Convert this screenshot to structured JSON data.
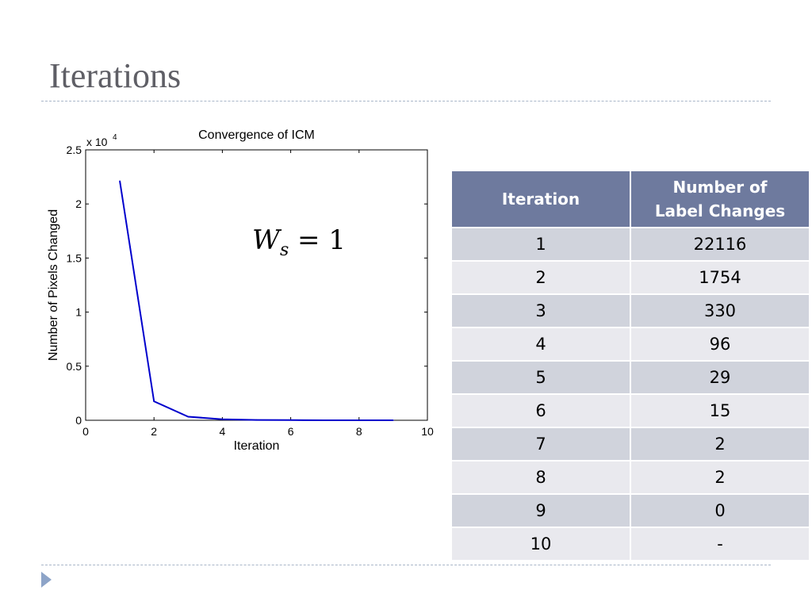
{
  "slide": {
    "title": "Iterations"
  },
  "equation": {
    "lhs": "W",
    "subscript": "s",
    "rhs": " = 1"
  },
  "table": {
    "headers": [
      "Iteration",
      "Number of Label Changes"
    ],
    "rows": [
      [
        "1",
        "22116"
      ],
      [
        "2",
        "1754"
      ],
      [
        "3",
        "330"
      ],
      [
        "4",
        "96"
      ],
      [
        "5",
        "29"
      ],
      [
        "6",
        "15"
      ],
      [
        "7",
        "2"
      ],
      [
        "8",
        "2"
      ],
      [
        "9",
        "0"
      ],
      [
        "10",
        "-"
      ]
    ]
  },
  "colors": {
    "title": "#5f5f66",
    "table_header": "#6e7a9e",
    "row_odd": "#d0d3dc",
    "row_even": "#e9e9ee",
    "series_line": "#0000cc",
    "bullet": "#8da4c8"
  },
  "chart_data": {
    "type": "line",
    "title": "Convergence of ICM",
    "xlabel": "Iteration",
    "ylabel": "Number of Pixels Changed",
    "y_multiplier_label": "x 10",
    "y_multiplier_exponent": "4",
    "xlim": [
      0,
      10
    ],
    "ylim": [
      0,
      2.5
    ],
    "xticks": [
      "0",
      "2",
      "4",
      "6",
      "8",
      "10"
    ],
    "yticks": [
      "0",
      "0.5",
      "1",
      "1.5",
      "2",
      "2.5"
    ],
    "grid": false,
    "series": [
      {
        "x": [
          1,
          2,
          3,
          4,
          5,
          6,
          7,
          8,
          9
        ],
        "y": [
          2.2116,
          0.1754,
          0.033,
          0.0096,
          0.0029,
          0.0015,
          0.0002,
          0.0002,
          0.0
        ]
      }
    ]
  }
}
